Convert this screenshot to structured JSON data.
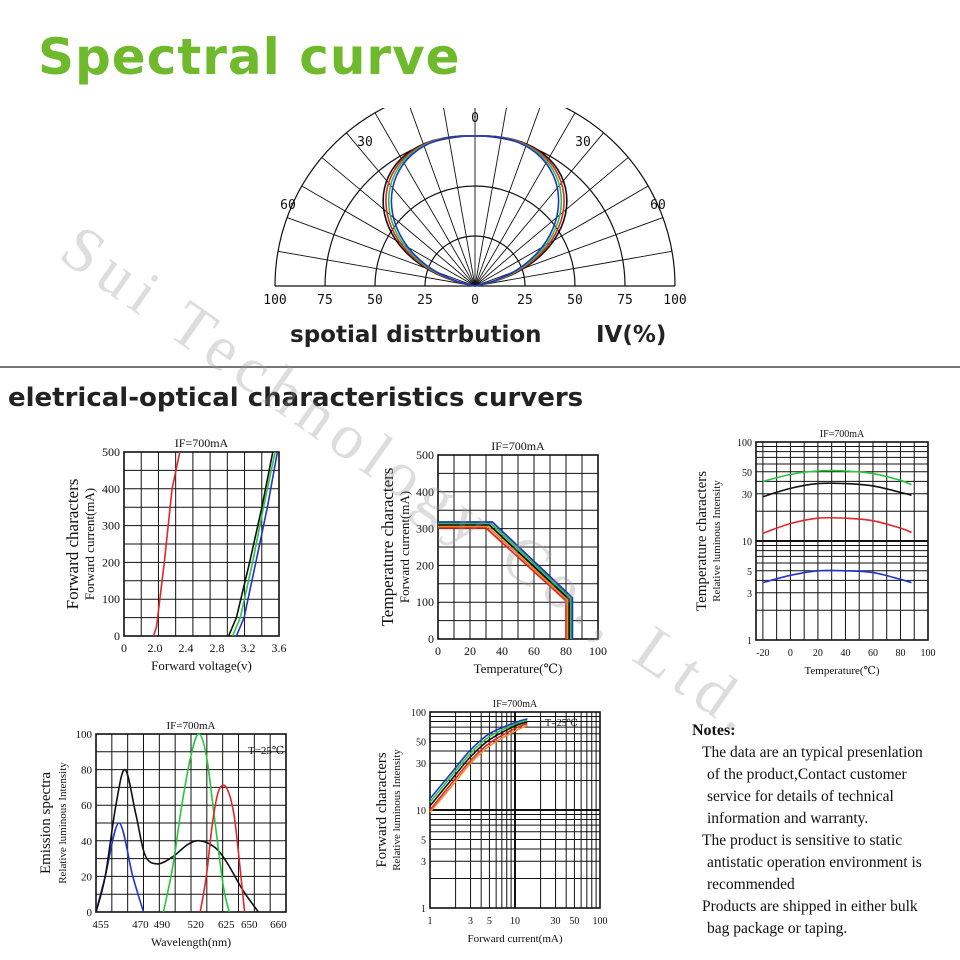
{
  "page": {
    "title": "Spectral curve",
    "polar_caption": "spotial disttrbution",
    "polar_unit": "IV(%)",
    "section_title": "eletrical-optical characteristics curvers",
    "watermark": "Sui Technology Co., Ltd.",
    "colors": {
      "title": "#6fba2c",
      "red": "#e0262b",
      "green": "#27c53c",
      "blue": "#2433c9",
      "black": "#111111",
      "orange": "#f08a1c"
    }
  },
  "notes": {
    "title": "Notes:",
    "lines": [
      "The data are an typical presenlation",
      "of the product,Contact customer",
      "service for details of technical",
      "information and warranty.",
      "The product is sensitive to static",
      "antistatic operation environment is",
      "recommended",
      "Products are shipped in either bulk",
      "bag package or taping."
    ]
  },
  "chart_data": [
    {
      "type": "line",
      "name": "polar",
      "radial_labels": [
        "100",
        "75",
        "50",
        "25",
        "0",
        "25",
        "50",
        "75",
        "100"
      ],
      "angle_labels": {
        "top": "0",
        "left30": "30",
        "right30": "30",
        "left60": "60",
        "right60": "60"
      },
      "series": [
        {
          "color": "#111111",
          "width_factor": 1.0
        },
        {
          "color": "#e0262b",
          "width_factor": 0.97
        },
        {
          "color": "#27c53c",
          "width_factor": 0.94
        },
        {
          "color": "#2433c9",
          "width_factor": 0.91
        }
      ]
    },
    {
      "type": "line",
      "name": "forward",
      "title": "IF=700mA",
      "ylabel_main": "Forward characters",
      "ylabel_sub": "Forward current(mA)",
      "xlabel": "Forward voltage(v)",
      "xlim": [
        0,
        3.6
      ],
      "ylim": [
        0,
        500
      ],
      "xticks": [
        "0",
        "2.0",
        "2.4",
        "2.8",
        "3.2",
        "3.6"
      ],
      "xtick_vals": [
        0,
        2.0,
        2.4,
        2.8,
        3.2,
        3.6
      ],
      "yticks": [
        "0",
        "100",
        "200",
        "300",
        "400",
        "500"
      ],
      "series": [
        {
          "color": "#e0262b",
          "points": [
            [
              1.9,
              0
            ],
            [
              2.02,
              25
            ],
            [
              2.12,
              200
            ],
            [
              2.22,
              400
            ],
            [
              2.32,
              500
            ]
          ]
        },
        {
          "color": "#111111",
          "points": [
            [
              2.95,
              0
            ],
            [
              3.05,
              50
            ],
            [
              3.22,
              200
            ],
            [
              3.38,
              350
            ],
            [
              3.52,
              500
            ]
          ]
        },
        {
          "color": "#27c53c",
          "points": [
            [
              3.0,
              0
            ],
            [
              3.1,
              50
            ],
            [
              3.26,
              200
            ],
            [
              3.4,
              350
            ],
            [
              3.55,
              500
            ]
          ]
        },
        {
          "color": "#2433c9",
          "points": [
            [
              3.05,
              0
            ],
            [
              3.15,
              50
            ],
            [
              3.3,
              200
            ],
            [
              3.45,
              350
            ],
            [
              3.58,
              500
            ]
          ]
        }
      ]
    },
    {
      "type": "line",
      "name": "temp_current",
      "title": "IF=700mA",
      "ylabel_main": "Temperature characters",
      "ylabel_sub": "Forward current(mA)",
      "xlabel": "Temperature(℃)",
      "xlim": [
        0,
        100
      ],
      "ylim": [
        0,
        500
      ],
      "xticks": [
        "0",
        "20",
        "40",
        "60",
        "80",
        "100"
      ],
      "yticks": [
        "0",
        "100",
        "200",
        "300",
        "400",
        "500"
      ],
      "series": [
        {
          "color": "#e0262b",
          "points": [
            [
              0,
              302
            ],
            [
              30,
              302
            ],
            [
              80,
              104
            ],
            [
              80,
              0
            ]
          ]
        },
        {
          "color": "#f08a1c",
          "points": [
            [
              0,
              306
            ],
            [
              31,
              306
            ],
            [
              81,
              106
            ],
            [
              81,
              0
            ]
          ]
        },
        {
          "color": "#111111",
          "points": [
            [
              0,
              310
            ],
            [
              32,
              310
            ],
            [
              82,
              108
            ],
            [
              82,
              0
            ]
          ]
        },
        {
          "color": "#27c53c",
          "points": [
            [
              0,
              314
            ],
            [
              33,
              314
            ],
            [
              83,
              110
            ],
            [
              83,
              0
            ]
          ]
        },
        {
          "color": "#2433c9",
          "points": [
            [
              0,
              318
            ],
            [
              34,
              318
            ],
            [
              84,
              112
            ],
            [
              84,
              0
            ]
          ]
        }
      ]
    },
    {
      "type": "line",
      "name": "temp_intensity",
      "title": "IF=700mA",
      "ylabel_main": "Temperature characters",
      "ylabel_sub": "Relative luminous Intensity",
      "xlabel": "Temperature(℃)",
      "xlim": [
        -25,
        100
      ],
      "ylim": [
        1,
        100
      ],
      "yscale": "log",
      "xticks": [
        "-20",
        "0",
        "20",
        "40",
        "60",
        "80",
        "100"
      ],
      "xtick_vals": [
        -20,
        0,
        20,
        40,
        60,
        80,
        100
      ],
      "yticks": [
        "1",
        "3",
        "5",
        "10",
        "30",
        "50",
        "100"
      ],
      "ytick_vals": [
        1,
        3,
        5,
        10,
        30,
        50,
        100
      ],
      "series": [
        {
          "color": "#27c53c",
          "points": [
            [
              -20,
              40
            ],
            [
              0,
              47
            ],
            [
              20,
              51
            ],
            [
              40,
              51
            ],
            [
              60,
              48
            ],
            [
              80,
              41
            ],
            [
              88,
              37
            ]
          ]
        },
        {
          "color": "#111111",
          "points": [
            [
              -20,
              28
            ],
            [
              0,
              34
            ],
            [
              20,
              38
            ],
            [
              40,
              38
            ],
            [
              60,
              36
            ],
            [
              80,
              31
            ],
            [
              88,
              29
            ]
          ]
        },
        {
          "color": "#e0262b",
          "points": [
            [
              -20,
              12
            ],
            [
              0,
              15
            ],
            [
              20,
              17
            ],
            [
              40,
              17
            ],
            [
              60,
              16
            ],
            [
              80,
              13.5
            ],
            [
              88,
              12.2
            ]
          ]
        },
        {
          "color": "#2433c9",
          "points": [
            [
              -20,
              3.8
            ],
            [
              0,
              4.5
            ],
            [
              20,
              5.0
            ],
            [
              40,
              5.0
            ],
            [
              60,
              4.8
            ],
            [
              80,
              4.1
            ],
            [
              88,
              3.8
            ]
          ]
        }
      ]
    },
    {
      "type": "line",
      "name": "emission",
      "title": "IF=700mA",
      "annotation": "T=25℃",
      "ylabel_main": "Emission spectra",
      "ylabel_sub": "Relative luminous Intensity",
      "xlabel": "Wavelength(nm)",
      "ylim": [
        0,
        100
      ],
      "xticks": [
        "455",
        "470",
        "490",
        "520",
        "625",
        "650",
        "660"
      ],
      "yticks": [
        "0",
        "20",
        "40",
        "60",
        "80",
        "100"
      ],
      "series": [
        {
          "color": "#2433c9",
          "points": [
            [
              0,
              0
            ],
            [
              0.3,
              20
            ],
            [
              0.75,
              50
            ],
            [
              1.2,
              20
            ],
            [
              1.55,
              0
            ]
          ]
        },
        {
          "color": "#111111",
          "points": [
            [
              0,
              0
            ],
            [
              0.3,
              20
            ],
            [
              0.65,
              60
            ],
            [
              0.95,
              80
            ],
            [
              1.3,
              55
            ],
            [
              1.6,
              32
            ],
            [
              2.0,
              27
            ],
            [
              2.5,
              31
            ],
            [
              3.0,
              38
            ],
            [
              3.4,
              40
            ],
            [
              3.9,
              36
            ],
            [
              4.3,
              27
            ],
            [
              4.8,
              12
            ],
            [
              5.3,
              0
            ]
          ]
        },
        {
          "color": "#27c53c",
          "points": [
            [
              2.2,
              0
            ],
            [
              2.5,
              25
            ],
            [
              2.8,
              60
            ],
            [
              3.1,
              88
            ],
            [
              3.35,
              100
            ],
            [
              3.6,
              88
            ],
            [
              3.85,
              55
            ],
            [
              4.15,
              15
            ],
            [
              4.35,
              0
            ]
          ]
        },
        {
          "color": "#e0262b",
          "points": [
            [
              3.4,
              0
            ],
            [
              3.6,
              20
            ],
            [
              3.8,
              50
            ],
            [
              4.0,
              68
            ],
            [
              4.25,
              70
            ],
            [
              4.5,
              55
            ],
            [
              4.7,
              25
            ],
            [
              4.85,
              0
            ]
          ]
        }
      ]
    },
    {
      "type": "line",
      "name": "forward_intensity",
      "title": "IF=700mA",
      "annotation": "T=25℃",
      "ylabel_main": "Forward characters",
      "ylabel_sub": "Relative luminous Intensity",
      "xlabel": "Forward current(mA)",
      "xlim": [
        1,
        100
      ],
      "xscale": "log",
      "ylim": [
        1,
        100
      ],
      "yscale": "log",
      "xticks": [
        "1",
        "3",
        "5",
        "10",
        "30",
        "50",
        "100"
      ],
      "xtick_vals": [
        1,
        3,
        5,
        10,
        30,
        50,
        100
      ],
      "yticks": [
        "1",
        "3",
        "5",
        "10",
        "30",
        "50",
        "100"
      ],
      "ytick_vals": [
        1,
        3,
        5,
        10,
        30,
        50,
        100
      ],
      "series": [
        {
          "color": "#2433c9",
          "points": [
            [
              1,
              13
            ],
            [
              2,
              27
            ],
            [
              3,
              41
            ],
            [
              5,
              60
            ],
            [
              10,
              78
            ],
            [
              14,
              85
            ]
          ]
        },
        {
          "color": "#27c53c",
          "points": [
            [
              1,
              12
            ],
            [
              2,
              25
            ],
            [
              3,
              38
            ],
            [
              5,
              56
            ],
            [
              10,
              75
            ],
            [
              14,
              82
            ]
          ]
        },
        {
          "color": "#111111",
          "points": [
            [
              1,
              11
            ],
            [
              2,
              23
            ],
            [
              3,
              35
            ],
            [
              5,
              52
            ],
            [
              10,
              72
            ],
            [
              14,
              79
            ]
          ]
        },
        {
          "color": "#e0262b",
          "points": [
            [
              1,
              10
            ],
            [
              2,
              21
            ],
            [
              3,
              32
            ],
            [
              5,
              48
            ],
            [
              10,
              68
            ],
            [
              14,
              76
            ]
          ]
        },
        {
          "color": "#f08a1c",
          "points": [
            [
              1,
              9.5
            ],
            [
              2,
              19.5
            ],
            [
              3,
              30
            ],
            [
              5,
              45
            ],
            [
              10,
              64
            ],
            [
              14,
              73
            ]
          ]
        }
      ]
    }
  ]
}
